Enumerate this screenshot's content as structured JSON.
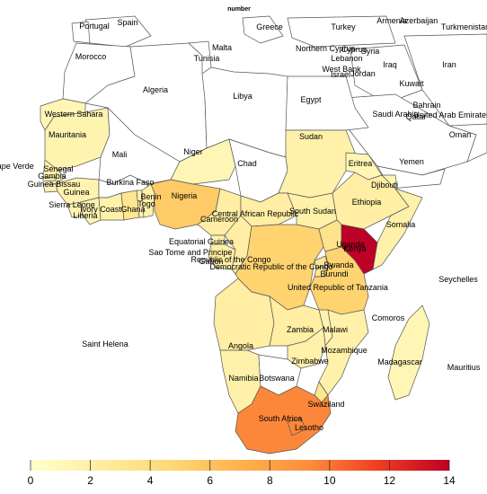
{
  "title": "number",
  "scale": {
    "min": 0,
    "max": 14,
    "ticks": [
      0,
      2,
      4,
      6,
      8,
      10,
      12,
      14
    ],
    "colors": [
      "#ffffcc",
      "#ffeda0",
      "#fed976",
      "#feb24c",
      "#fd8d3c",
      "#f03b20",
      "#bd0026"
    ]
  },
  "colors": {
    "no_data": "#ffffff",
    "border": "#555555"
  },
  "regions": [
    {
      "name": "Mauritania",
      "value": 1.5
    },
    {
      "name": "Western Sahara",
      "value": 1.2
    },
    {
      "name": "Senegal",
      "value": 1.8
    },
    {
      "name": "Gambia",
      "value": 1.5
    },
    {
      "name": "Guinea Bissau",
      "value": 1.5
    },
    {
      "name": "Guinea",
      "value": 1.5
    },
    {
      "name": "Sierra Leone",
      "value": 1.5
    },
    {
      "name": "Liberia",
      "value": 1.5
    },
    {
      "name": "Ivory Coast",
      "value": 1.8
    },
    {
      "name": "Ghana",
      "value": 3.2
    },
    {
      "name": "Togo",
      "value": 1.8
    },
    {
      "name": "Benin",
      "value": 1.8
    },
    {
      "name": "Nigeria",
      "value": 5.5
    },
    {
      "name": "Niger",
      "value": 1.2
    },
    {
      "name": "Burkina Faso",
      "value": null
    },
    {
      "name": "Mali",
      "value": null
    },
    {
      "name": "Chad",
      "value": null
    },
    {
      "name": "Sudan",
      "value": 1.8
    },
    {
      "name": "Eritrea",
      "value": 1.2
    },
    {
      "name": "Ethiopia",
      "value": 2.2
    },
    {
      "name": "Djibouti",
      "value": 1.2
    },
    {
      "name": "Somalia",
      "value": 1.8
    },
    {
      "name": "South Sudan",
      "value": 1.8
    },
    {
      "name": "Central African Republic",
      "value": 2.2
    },
    {
      "name": "Cameroon",
      "value": 2.2
    },
    {
      "name": "Equatorial Guinea",
      "value": 1.5
    },
    {
      "name": "Sao Tome and Principe",
      "value": null
    },
    {
      "name": "Gabon",
      "value": 2.2
    },
    {
      "name": "Republic of the Congo",
      "value": 2.2
    },
    {
      "name": "Democratic Republic of the Congo",
      "value": 5.0
    },
    {
      "name": "Uganda",
      "value": 3.5
    },
    {
      "name": "Kenya",
      "value": 14
    },
    {
      "name": "Rwanda",
      "value": 3.2
    },
    {
      "name": "Burundi",
      "value": 3.2
    },
    {
      "name": "United Republic of Tanzania",
      "value": 5.0
    },
    {
      "name": "Angola",
      "value": 2.2
    },
    {
      "name": "Zambia",
      "value": 2.2
    },
    {
      "name": "Malawi",
      "value": 1.5
    },
    {
      "name": "Mozambique",
      "value": 1.8
    },
    {
      "name": "Zimbabwe",
      "value": 1.8
    },
    {
      "name": "Namibia",
      "value": 1.8
    },
    {
      "name": "Botswana",
      "value": null
    },
    {
      "name": "South Africa",
      "value": 9.5
    },
    {
      "name": "Lesotho",
      "value": 9.5
    },
    {
      "name": "Swaziland",
      "value": 3.2
    },
    {
      "name": "Madagascar",
      "value": 1.2
    },
    {
      "name": "Morocco",
      "value": null
    },
    {
      "name": "Algeria",
      "value": null
    },
    {
      "name": "Tunisia",
      "value": null
    },
    {
      "name": "Libya",
      "value": null
    },
    {
      "name": "Egypt",
      "value": null
    }
  ],
  "labels": [
    "Spain",
    "Portugal",
    "Greece",
    "Turkey",
    "Armenia",
    "Azerbaijan",
    "Turkmenistan",
    "Malta",
    "Tunisia",
    "Northern Cyprus",
    "Cyprus",
    "Syria",
    "Lebanon",
    "Iraq",
    "Iran",
    "West Bank",
    "Israel",
    "Jordan",
    "Morocco",
    "Algeria",
    "Libya",
    "Egypt",
    "Kuwait",
    "Bahrain",
    "Qatar",
    "United Arab Emirates",
    "Saudi Arabia",
    "Oman",
    "Western Sahara",
    "Mauritania",
    "Mali",
    "Niger",
    "Chad",
    "Sudan",
    "Eritrea",
    "Yemen",
    "Cape Verde",
    "Senegal",
    "Gambia",
    "Guinea Bissau",
    "Guinea",
    "Burkina Faso",
    "Benin",
    "Togo",
    "Nigeria",
    "Djibouti",
    "Ethiopia",
    "Sierra Leone",
    "Ivory Coast",
    "Ghana",
    "Liberia",
    "Central African Republic",
    "South Sudan",
    "Somalia",
    "Cameroon",
    "Equatorial Guinea",
    "Sao Tome and Principe",
    "Gabon",
    "Republic of the Congo",
    "Uganda",
    "Kenya",
    "Rwanda",
    "Burundi",
    "Democratic Republic of the Congo",
    "Seychelles",
    "United Republic of Tanzania",
    "Comoros",
    "Angola",
    "Zambia",
    "Malawi",
    "Saint Helena",
    "Mozambique",
    "Zimbabwe",
    "Madagascar",
    "Namibia",
    "Botswana",
    "Mauritius",
    "Swaziland",
    "South Africa",
    "Lesotho"
  ]
}
